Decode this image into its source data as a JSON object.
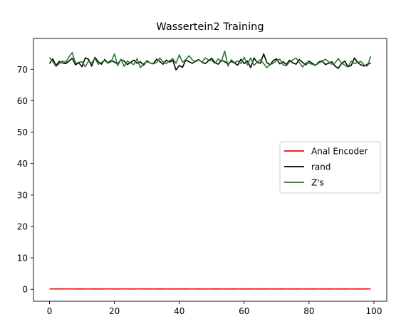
{
  "chart_data": {
    "type": "line",
    "title": "Wassertein2 Training",
    "xlabel": "",
    "ylabel": "",
    "xlim": [
      -4.95,
      103.95
    ],
    "ylim": [
      -3.8,
      79.8
    ],
    "xticks": [
      0,
      20,
      40,
      60,
      80,
      100
    ],
    "yticks": [
      0,
      10,
      20,
      30,
      40,
      50,
      60,
      70
    ],
    "grid": false,
    "legend_position": "center-right",
    "x": [
      0,
      1,
      2,
      3,
      4,
      5,
      6,
      7,
      8,
      9,
      10,
      11,
      12,
      13,
      14,
      15,
      16,
      17,
      18,
      19,
      20,
      21,
      22,
      23,
      24,
      25,
      26,
      27,
      28,
      29,
      30,
      31,
      32,
      33,
      34,
      35,
      36,
      37,
      38,
      39,
      40,
      41,
      42,
      43,
      44,
      45,
      46,
      47,
      48,
      49,
      50,
      51,
      52,
      53,
      54,
      55,
      56,
      57,
      58,
      59,
      60,
      61,
      62,
      63,
      64,
      65,
      66,
      67,
      68,
      69,
      70,
      71,
      72,
      73,
      74,
      75,
      76,
      77,
      78,
      79,
      80,
      81,
      82,
      83,
      84,
      85,
      86,
      87,
      88,
      89,
      90,
      91,
      92,
      93,
      94,
      95,
      96,
      97,
      98,
      99
    ],
    "series": [
      {
        "name": "Anal Encoder",
        "color": "#ff0000",
        "values": [
          0.1,
          0.15,
          0.1,
          0.12,
          0.14,
          0.1,
          0.11,
          0.13,
          0.1,
          0.12,
          0.1,
          0.11,
          0.14,
          0.1,
          0.12,
          0.1,
          0.13,
          0.1,
          0.11,
          0.12,
          0.1,
          0.1,
          0.12,
          0.11,
          0.1,
          0.13,
          0.1,
          0.11,
          0.12,
          0.1,
          0.1,
          0.12,
          0.11,
          0.1,
          0.12,
          0.1,
          0.11,
          0.1,
          0.12,
          0.1,
          0.11,
          0.1,
          0.12,
          0.1,
          0.11,
          0.1,
          0.12,
          0.1,
          0.1,
          0.11,
          0.1,
          0.12,
          0.1,
          0.11,
          0.1,
          0.1,
          0.12,
          0.1,
          0.11,
          0.1,
          0.12,
          0.1,
          0.1,
          0.11,
          0.1,
          0.12,
          0.1,
          0.1,
          0.11,
          0.1,
          0.12,
          0.1,
          0.1,
          0.11,
          0.1,
          0.12,
          0.1,
          0.1,
          0.11,
          0.1,
          0.12,
          0.1,
          0.1,
          0.11,
          0.1,
          0.12,
          0.1,
          0.1,
          0.11,
          0.1,
          0.12,
          0.1,
          0.1,
          0.11,
          0.1,
          0.12,
          0.1,
          0.1,
          0.15,
          0.1
        ]
      },
      {
        "name": "rand",
        "color": "#000000",
        "values": [
          71.8,
          73.3,
          71.2,
          72.5,
          72.0,
          71.8,
          72.6,
          73.5,
          71.4,
          72.1,
          70.8,
          73.6,
          73.2,
          71.0,
          73.8,
          72.4,
          71.6,
          73.1,
          72.0,
          72.8,
          72.3,
          71.7,
          73.0,
          72.6,
          71.5,
          72.2,
          72.9,
          71.9,
          72.4,
          71.3,
          72.7,
          72.0,
          71.8,
          73.2,
          72.5,
          71.6,
          72.9,
          72.3,
          72.8,
          69.8,
          71.2,
          70.6,
          73.0,
          72.4,
          71.9,
          72.6,
          73.1,
          72.2,
          71.8,
          72.7,
          73.5,
          72.1,
          71.6,
          72.9,
          72.4,
          71.7,
          72.5,
          72.0,
          71.3,
          73.2,
          71.8,
          72.6,
          70.5,
          73.6,
          72.2,
          71.9,
          74.9,
          72.1,
          71.4,
          72.8,
          73.3,
          71.7,
          72.4,
          71.5,
          72.9,
          72.0,
          71.6,
          73.1,
          72.2,
          71.4,
          72.6,
          71.9,
          71.2,
          72.3,
          72.7,
          71.5,
          71.9,
          72.4,
          71.0,
          70.3,
          71.8,
          72.6,
          70.8,
          71.2,
          73.6,
          72.1,
          71.4,
          71.0,
          71.6,
          71.9
        ]
      },
      {
        "name": "Z's",
        "color": "#2a7a2a",
        "values": [
          73.8,
          72.5,
          70.9,
          71.8,
          72.6,
          72.2,
          74.0,
          75.3,
          71.9,
          72.2,
          72.4,
          70.8,
          72.6,
          72.0,
          73.5,
          71.6,
          72.2,
          72.8,
          71.9,
          72.4,
          74.9,
          71.1,
          73.2,
          70.9,
          72.6,
          72.0,
          71.5,
          73.4,
          70.5,
          71.8,
          72.4,
          72.0,
          71.7,
          72.2,
          73.6,
          72.4,
          71.8,
          72.7,
          73.4,
          71.9,
          74.6,
          72.2,
          73.1,
          74.3,
          73.0,
          72.4,
          73.0,
          72.2,
          73.6,
          73.0,
          72.7,
          71.9,
          73.3,
          72.5,
          75.8,
          71.0,
          73.0,
          72.1,
          72.6,
          71.8,
          73.8,
          71.4,
          73.6,
          71.2,
          72.3,
          73.0,
          71.8,
          70.5,
          71.5,
          71.9,
          72.8,
          73.2,
          71.4,
          71.1,
          72.4,
          73.0,
          73.6,
          72.2,
          70.7,
          72.0,
          71.9,
          71.6,
          71.2,
          72.0,
          72.5,
          73.2,
          72.4,
          71.6,
          72.0,
          73.4,
          72.0,
          71.3,
          70.7,
          72.6,
          71.8,
          72.2,
          72.5,
          71.3,
          71.0,
          74.2
        ]
      }
    ]
  }
}
